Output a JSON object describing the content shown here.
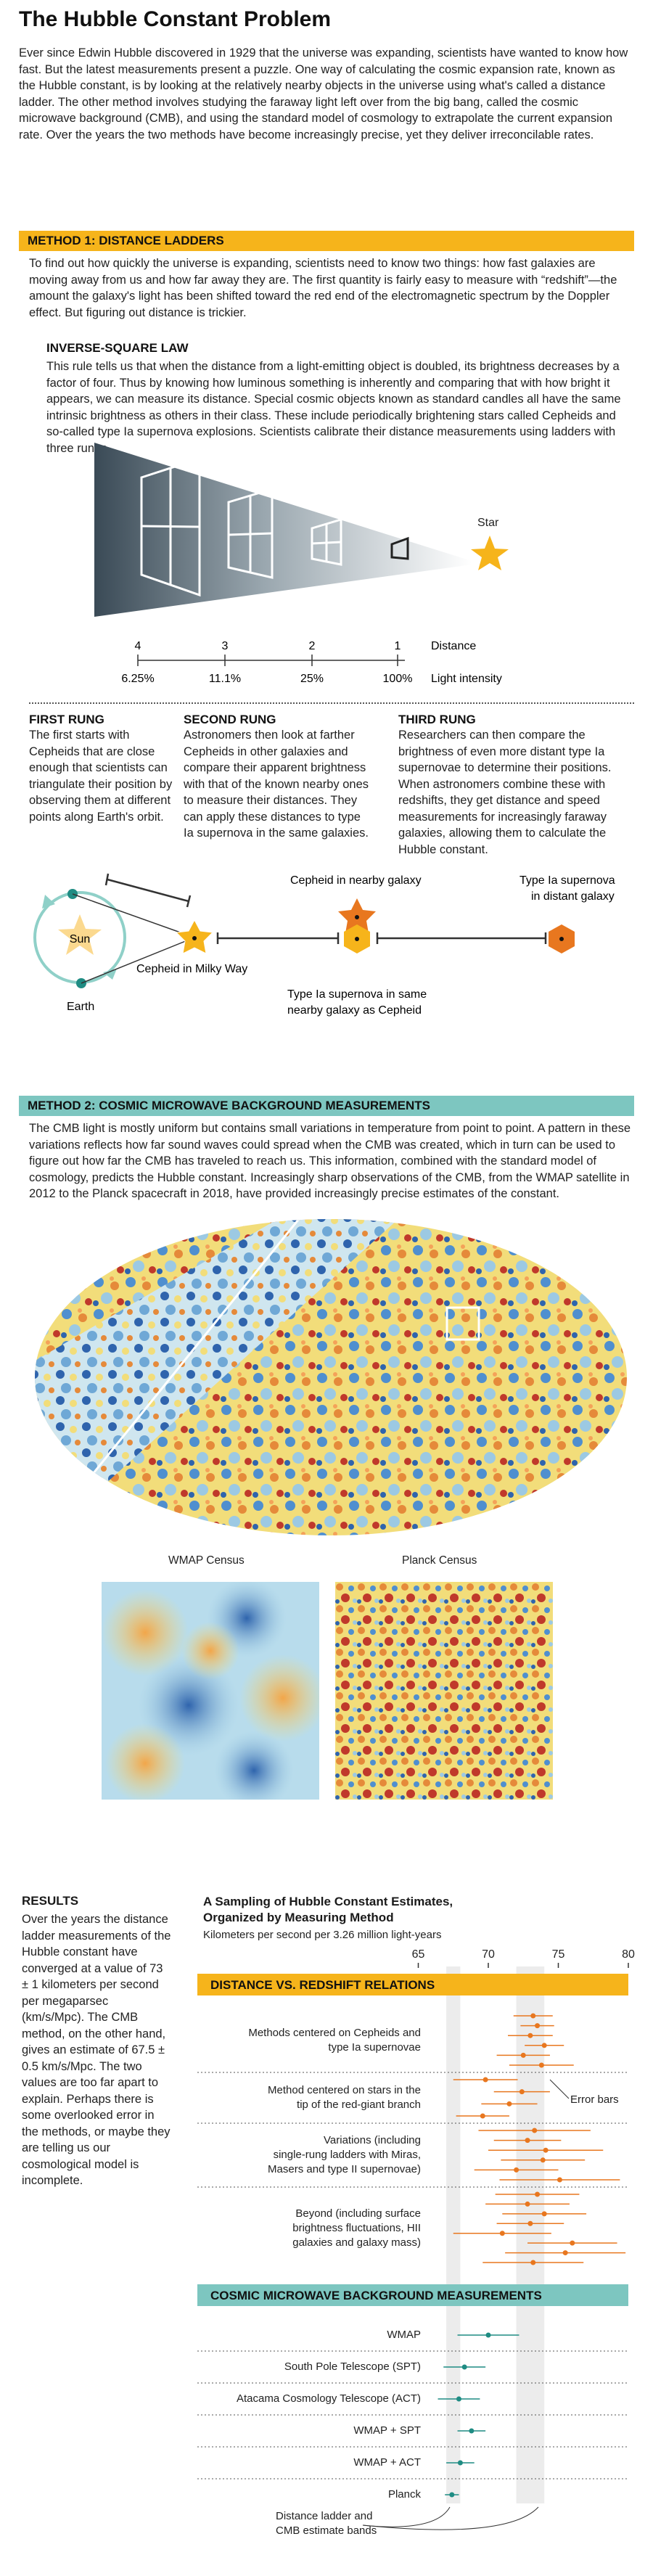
{
  "title": "The Hubble Constant Problem",
  "intro": "Ever since Edwin Hubble discovered in 1929 that the universe was expanding, scientists have wanted to know how fast. But the latest measurements present a puzzle. One way of calculating the cosmic expansion rate, known as the Hubble constant, is by looking at the relatively nearby objects in the universe using what's called a distance ladder. The other method involves studying the faraway light left over from the big bang, called the cosmic microwave background (CMB), and using the standard model of cosmology to extrapolate the current expansion rate. Over the years the two methods have become increasingly precise, yet they deliver irreconcilable rates.",
  "method1": {
    "title": "METHOD 1: DISTANCE LADDERS",
    "text": "To find out how quickly the universe is expanding, scientists need to know two things: how fast galaxies are moving away from us and how far away they are. The first quantity is fairly easy to measure with “redshift”—the amount the galaxy's light has been shifted toward the red end of the electromagnetic spectrum by the Doppler effect. But figuring out distance is trickier.",
    "isl_title": "INVERSE-SQUARE LAW",
    "isl_text": "This rule tells us that when the distance from a light-emitting object is doubled, its brightness decreases by a factor of four. Thus by knowing how luminous something is inherently and comparing that with how bright it appears, we can measure its distance. Special cosmic objects known as standard candles all have the same intrinsic brightness as others in their class. These include periodically brightening stars called Cepheids and so-called type Ia supernova explosions. Scientists calibrate their distance measurements using ladders with three rungs.",
    "star_label": "Star",
    "distances": [
      "4",
      "3",
      "2",
      "1"
    ],
    "distance_label": "Distance",
    "intensities": [
      "6.25%",
      "11.1%",
      "25%",
      "100%"
    ],
    "intensity_label": "Light intensity",
    "rungs": [
      {
        "title": "FIRST RUNG",
        "text": "The first starts with Cepheids that are close enough that scientists can triangulate their position by observing them at different points along Earth's orbit."
      },
      {
        "title": "SECOND RUNG",
        "text": "Astronomers then look at farther Cepheids in other galaxies and compare their apparent brightness with that of the known nearby ones to measure their distances. They can apply these distances to type Ia supernova in the same galaxies."
      },
      {
        "title": "THIRD RUNG",
        "text": "Researchers can then compare the brightness of even more distant type Ia supernovae to determine their positions. When astronomers combine these with redshifts, they get distance and speed measurements for increasingly faraway galaxies, allowing them to calculate the Hubble constant."
      }
    ],
    "ladder_labels": {
      "sun": "Sun",
      "earth": "Earth",
      "cepheid_mw": "Cepheid in Milky Way",
      "cepheid_nearby": "Cepheid in nearby galaxy",
      "sn_same": "Type Ia supernova in same nearby galaxy as Cepheid",
      "sn_distant": "Type Ia supernova in distant galaxy"
    }
  },
  "method2": {
    "title": "METHOD 2: COSMIC MICROWAVE BACKGROUND MEASUREMENTS",
    "text": "The CMB light is mostly uniform but contains small variations in temperature from point to point. A pattern in these variations reflects how far sound waves could spread when the CMB was created, which in turn can be used to figure out how far the CMB has traveled to reach us. This information, combined with the standard model of cosmology, predicts the Hubble constant. Increasingly sharp observations of the CMB, from the WMAP satellite in 2012 to the Planck spacecraft in 2018, have provided increasingly precise estimates of the constant.",
    "wmap_label": "WMAP Census",
    "planck_label": "Planck Census"
  },
  "results": {
    "title": "RESULTS",
    "text": "Over the years the distance ladder measurements of the Hubble constant have converged at a value of 73 ± 1 kilometers per second per megaparsec (km/s/Mpc). The CMB method, on the other hand, gives an estimate of 67.5 ± 0.5 km/s/Mpc. The two values are too far apart to explain. Perhaps there is some overlooked error in the methods, or maybe they are telling us our cosmological model is incomplete."
  },
  "chart_data": {
    "type": "scatter",
    "title": "A Sampling of Hubble Constant Estimates, Organized by Measuring Method",
    "subtitle": "Kilometers per second per 3.26 million light-years",
    "xticks": [
      "65",
      "70",
      "75",
      "80"
    ],
    "xlim": [
      60,
      80
    ],
    "bands": [
      {
        "label": "CMB",
        "min": 67,
        "max": 68,
        "color": "#ececec"
      },
      {
        "label": "Distance ladder",
        "min": 72,
        "max": 74,
        "color": "#ececec"
      }
    ],
    "sections": [
      {
        "title": "DISTANCE VS. REDSHIFT RELATIONS",
        "bar_color": "#f6b41b",
        "point_color": "#e8771f",
        "groups": [
          {
            "label": "Methods centered on Cepheids and type Ia supernovae",
            "points": [
              {
                "v": 73.2,
                "lo": 71.8,
                "hi": 74.6
              },
              {
                "v": 73.5,
                "lo": 72.3,
                "hi": 74.7
              },
              {
                "v": 73.0,
                "lo": 71.4,
                "hi": 74.6
              },
              {
                "v": 74.0,
                "lo": 72.6,
                "hi": 75.4
              },
              {
                "v": 72.5,
                "lo": 70.6,
                "hi": 74.4
              },
              {
                "v": 73.8,
                "lo": 71.5,
                "hi": 76.1
              }
            ]
          },
          {
            "label": "Method centered on stars in the tip of the red-giant branch",
            "points": [
              {
                "v": 69.8,
                "lo": 67.5,
                "hi": 72.1
              },
              {
                "v": 72.4,
                "lo": 70.4,
                "hi": 74.4
              },
              {
                "v": 71.5,
                "lo": 69.5,
                "hi": 73.5
              },
              {
                "v": 69.6,
                "lo": 67.7,
                "hi": 71.5
              }
            ]
          },
          {
            "label": "Variations (including single-rung ladders with Miras, Masers and type II supernovae)",
            "points": [
              {
                "v": 73.3,
                "lo": 69.3,
                "hi": 77.3
              },
              {
                "v": 72.8,
                "lo": 70.4,
                "hi": 75.2
              },
              {
                "v": 74.1,
                "lo": 70.0,
                "hi": 78.2
              },
              {
                "v": 73.9,
                "lo": 70.9,
                "hi": 76.9
              },
              {
                "v": 72.0,
                "lo": 69.0,
                "hi": 75.0
              },
              {
                "v": 75.1,
                "lo": 70.8,
                "hi": 79.4
              }
            ]
          },
          {
            "label": "Beyond (including surface brightness fluctuations, HII galaxies and galaxy mass)",
            "points": [
              {
                "v": 73.5,
                "lo": 70.5,
                "hi": 76.5
              },
              {
                "v": 72.8,
                "lo": 69.8,
                "hi": 75.8
              },
              {
                "v": 74.0,
                "lo": 71.0,
                "hi": 77.0
              },
              {
                "v": 73.0,
                "lo": 70.6,
                "hi": 75.4
              },
              {
                "v": 71.0,
                "lo": 67.5,
                "hi": 74.5
              },
              {
                "v": 76.0,
                "lo": 72.8,
                "hi": 79.2
              },
              {
                "v": 75.5,
                "lo": 71.2,
                "hi": 79.8
              },
              {
                "v": 73.2,
                "lo": 69.6,
                "hi": 76.8
              }
            ]
          }
        ]
      },
      {
        "title": "COSMIC MICROWAVE BACKGROUND MEASUREMENTS",
        "bar_color": "#7dc6c0",
        "point_color": "#1f8c83",
        "groups": [
          {
            "label": "WMAP",
            "points": [
              {
                "v": 70.0,
                "lo": 67.8,
                "hi": 72.2
              }
            ]
          },
          {
            "label": "South Pole Telescope (SPT)",
            "points": [
              {
                "v": 68.3,
                "lo": 66.8,
                "hi": 69.8
              }
            ]
          },
          {
            "label": "Atacama Cosmology Telescope (ACT)",
            "points": [
              {
                "v": 67.9,
                "lo": 66.4,
                "hi": 69.4
              }
            ]
          },
          {
            "label": "WMAP + SPT",
            "points": [
              {
                "v": 68.8,
                "lo": 67.8,
                "hi": 69.8
              }
            ]
          },
          {
            "label": "WMAP + ACT",
            "points": [
              {
                "v": 68.0,
                "lo": 67.0,
                "hi": 69.0
              }
            ]
          },
          {
            "label": "Planck",
            "points": [
              {
                "v": 67.4,
                "lo": 66.9,
                "hi": 67.9
              }
            ]
          }
        ]
      }
    ],
    "annotations": {
      "error_bars": "Error bars",
      "bands": "Distance ladder and CMB estimate bands"
    }
  }
}
